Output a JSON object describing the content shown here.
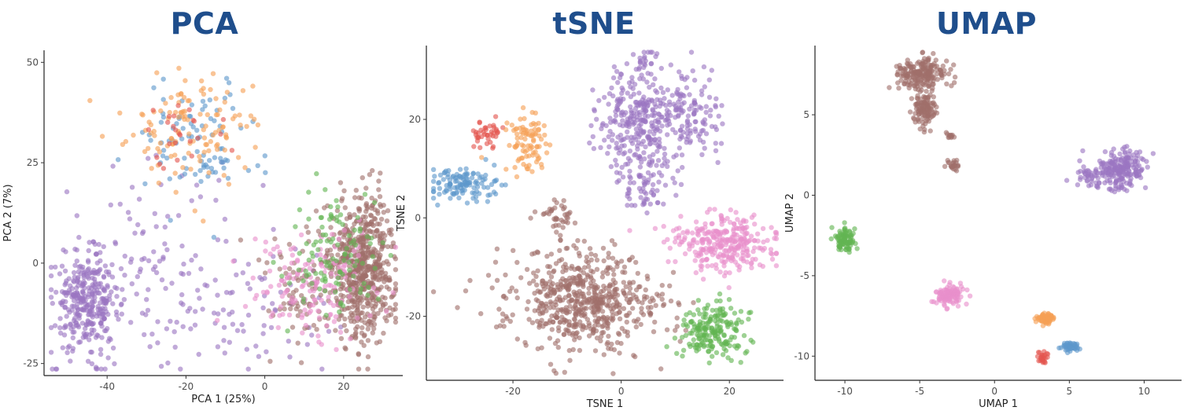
{
  "chart_data": [
    {
      "type": "scatter",
      "title": "PCA",
      "xlabel": "PCA 1 (25%)",
      "ylabel": "PCA 2 (7%)",
      "xlim": [
        -56,
        35
      ],
      "ylim": [
        -28,
        53
      ],
      "xticks": [
        -40,
        -20,
        0,
        20
      ],
      "yticks": [
        -25,
        0,
        25,
        50
      ],
      "grid": false,
      "legend": "none",
      "clusters": [
        {
          "color": "#9b76c2",
          "cx": -45,
          "cy": -10,
          "sx": 4,
          "sy": 6,
          "n": 320
        },
        {
          "color": "#9b76c2",
          "cx": -28,
          "cy": 0,
          "sx": 14,
          "sy": 12,
          "n": 120
        },
        {
          "color": "#9b76c2",
          "cx": -5,
          "cy": -12,
          "sx": 12,
          "sy": 8,
          "n": 70
        },
        {
          "color": "#5e98cc",
          "cx": -17,
          "cy": 30,
          "sx": 8,
          "sy": 8,
          "n": 90
        },
        {
          "color": "#f5a056",
          "cx": -18,
          "cy": 34,
          "sx": 9,
          "sy": 7,
          "n": 120
        },
        {
          "color": "#e4554f",
          "cx": -20,
          "cy": 33,
          "sx": 6,
          "sy": 5,
          "n": 25
        },
        {
          "color": "#a0706a",
          "cx": 25,
          "cy": -1,
          "sx": 4,
          "sy": 9,
          "n": 600
        },
        {
          "color": "#a0706a",
          "cx": 10,
          "cy": -6,
          "sx": 6,
          "sy": 7,
          "n": 90
        },
        {
          "color": "#e98fcc",
          "cx": 13,
          "cy": -6,
          "sx": 8,
          "sy": 7,
          "n": 150
        },
        {
          "color": "#63b553",
          "cx": 17,
          "cy": 2,
          "sx": 6,
          "sy": 7,
          "n": 110
        }
      ]
    },
    {
      "type": "scatter",
      "title": "tSNE",
      "xlabel": "TSNE 1",
      "ylabel": "TSNE 2",
      "xlim": [
        -36,
        30
      ],
      "ylim": [
        -33,
        35
      ],
      "xticks": [
        -20,
        0,
        20
      ],
      "yticks": [
        -20,
        0,
        20
      ],
      "grid": false,
      "legend": "none",
      "clusters": [
        {
          "color": "#9b76c2",
          "cx": 4,
          "cy": 20,
          "sx": 4,
          "sy": 5,
          "n": 300
        },
        {
          "color": "#9b76c2",
          "cx": 13,
          "cy": 20,
          "sx": 3,
          "sy": 5,
          "n": 100
        },
        {
          "color": "#9b76c2",
          "cx": 4,
          "cy": 7,
          "sx": 3,
          "sy": 3,
          "n": 80
        },
        {
          "color": "#9b76c2",
          "cx": 5,
          "cy": 32,
          "sx": 1,
          "sy": 1.5,
          "n": 20
        },
        {
          "color": "#5e98cc",
          "cx": -29,
          "cy": 7,
          "sx": 3,
          "sy": 1.5,
          "n": 120
        },
        {
          "color": "#e4554f",
          "cx": -25,
          "cy": 17,
          "sx": 1.5,
          "sy": 1.2,
          "n": 40
        },
        {
          "color": "#f5a056",
          "cx": -17,
          "cy": 15,
          "sx": 2,
          "sy": 3,
          "n": 90
        },
        {
          "color": "#a0706a",
          "cx": -7,
          "cy": -17,
          "sx": 7,
          "sy": 5,
          "n": 600
        },
        {
          "color": "#a0706a",
          "cx": -12,
          "cy": 0,
          "sx": 2,
          "sy": 2,
          "n": 40
        },
        {
          "color": "#e98fcc",
          "cx": 19,
          "cy": -5,
          "sx": 5,
          "sy": 3,
          "n": 300
        },
        {
          "color": "#63b553",
          "cx": 17,
          "cy": -23,
          "sx": 3,
          "sy": 3,
          "n": 200
        }
      ]
    },
    {
      "type": "scatter",
      "title": "UMAP",
      "xlabel": "UMAP 1",
      "ylabel": "UMAP 2",
      "xlim": [
        -12,
        12.5
      ],
      "ylim": [
        -11.5,
        9.3
      ],
      "xticks": [
        -10,
        -5,
        0,
        5,
        10
      ],
      "yticks": [
        -10,
        -5,
        0,
        5
      ],
      "grid": false,
      "legend": "none",
      "clusters": [
        {
          "color": "#a0706a",
          "cx": -5,
          "cy": 7.5,
          "sx": 0.8,
          "sy": 0.5,
          "n": 200
        },
        {
          "color": "#a0706a",
          "cx": -4.7,
          "cy": 5.3,
          "sx": 0.4,
          "sy": 0.6,
          "n": 120
        },
        {
          "color": "#a0706a",
          "cx": -2.8,
          "cy": 1.9,
          "sx": 0.25,
          "sy": 0.2,
          "n": 25
        },
        {
          "color": "#a0706a",
          "cx": -2.9,
          "cy": 3.7,
          "sx": 0.2,
          "sy": 0.15,
          "n": 12
        },
        {
          "color": "#9b76c2",
          "cx": 8.5,
          "cy": 1.7,
          "sx": 0.8,
          "sy": 0.6,
          "n": 200
        },
        {
          "color": "#9b76c2",
          "cx": 6.5,
          "cy": 1.3,
          "sx": 0.8,
          "sy": 0.4,
          "n": 50
        },
        {
          "color": "#63b553",
          "cx": -10,
          "cy": -2.8,
          "sx": 0.35,
          "sy": 0.4,
          "n": 90
        },
        {
          "color": "#e98fcc",
          "cx": -3,
          "cy": -6.2,
          "sx": 0.5,
          "sy": 0.3,
          "n": 130
        },
        {
          "color": "#f5a056",
          "cx": 3.4,
          "cy": -7.7,
          "sx": 0.35,
          "sy": 0.2,
          "n": 60
        },
        {
          "color": "#5e98cc",
          "cx": 5.1,
          "cy": -9.4,
          "sx": 0.3,
          "sy": 0.15,
          "n": 50
        },
        {
          "color": "#e4554f",
          "cx": 3.2,
          "cy": -10.2,
          "sx": 0.2,
          "sy": 0.2,
          "n": 25
        }
      ]
    }
  ]
}
